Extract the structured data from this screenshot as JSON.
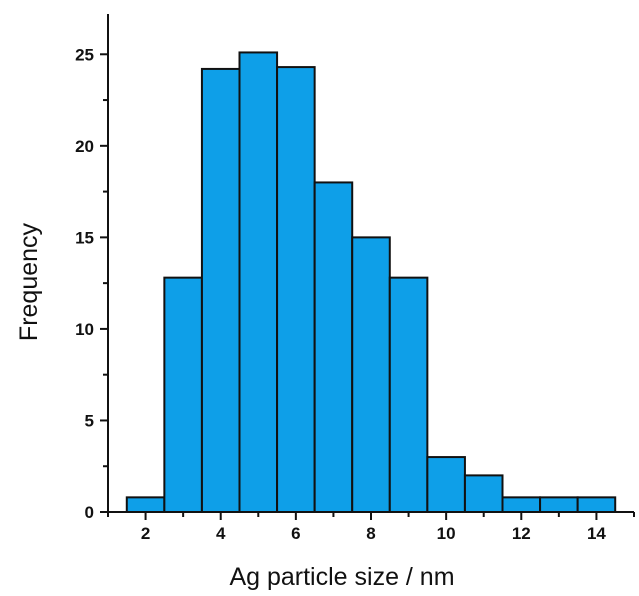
{
  "chart_data": {
    "type": "bar",
    "title": "",
    "xlabel": "Ag particle size / nm",
    "ylabel": "Frequency",
    "bin_width": 1,
    "x": [
      2,
      3,
      4,
      5,
      6,
      7,
      8,
      9,
      10,
      11,
      12,
      13,
      14
    ],
    "values": [
      0.8,
      12.8,
      24.2,
      25.1,
      24.3,
      18.0,
      15.0,
      12.8,
      3.0,
      2.0,
      0.8,
      0.8,
      0.8
    ],
    "xlim": [
      1,
      15
    ],
    "ylim": [
      0,
      27.2
    ],
    "x_ticks": [
      "2",
      "4",
      "6",
      "8",
      "10",
      "12",
      "14"
    ],
    "y_ticks": [
      "0",
      "5",
      "10",
      "15",
      "20",
      "25"
    ],
    "grid": false,
    "legend": "none",
    "colors": {
      "bar_fill": "#0E9FE8",
      "bar_edge": "#111111",
      "axis": "#111111"
    }
  }
}
